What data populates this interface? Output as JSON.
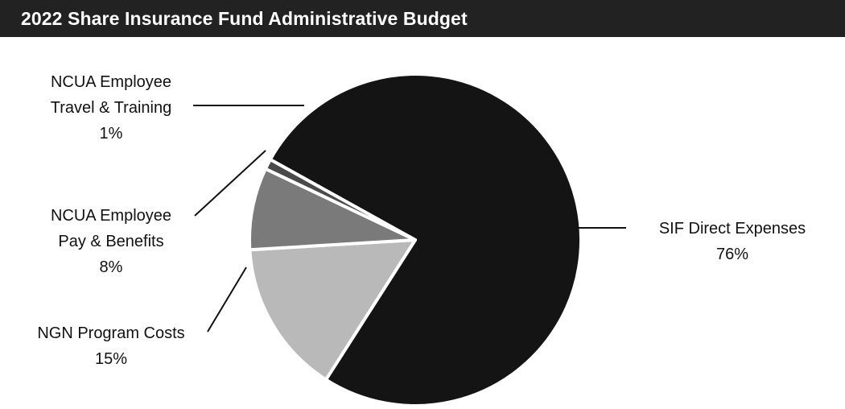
{
  "chart_data": {
    "type": "pie",
    "title": "2022 Share Insurance Fund Administrative Budget",
    "slices": [
      {
        "label_lines": [
          "SIF Direct Expenses"
        ],
        "pct_label": "76%",
        "value": 76,
        "color": "#141414"
      },
      {
        "label_lines": [
          "NGN Program Costs"
        ],
        "pct_label": "15%",
        "value": 15,
        "color": "#b9b9b9"
      },
      {
        "label_lines": [
          "NCUA Employee",
          "Pay & Benefits"
        ],
        "pct_label": "8%",
        "value": 8,
        "color": "#7a7a7a"
      },
      {
        "label_lines": [
          "NCUA Employee",
          "Travel & Training"
        ],
        "pct_label": "1%",
        "value": 1,
        "color": "#4a4a4a"
      }
    ],
    "legend": "none"
  },
  "colors": {
    "title_bar": "#222222",
    "title_text": "#ffffff",
    "slice_border": "#ffffff"
  }
}
